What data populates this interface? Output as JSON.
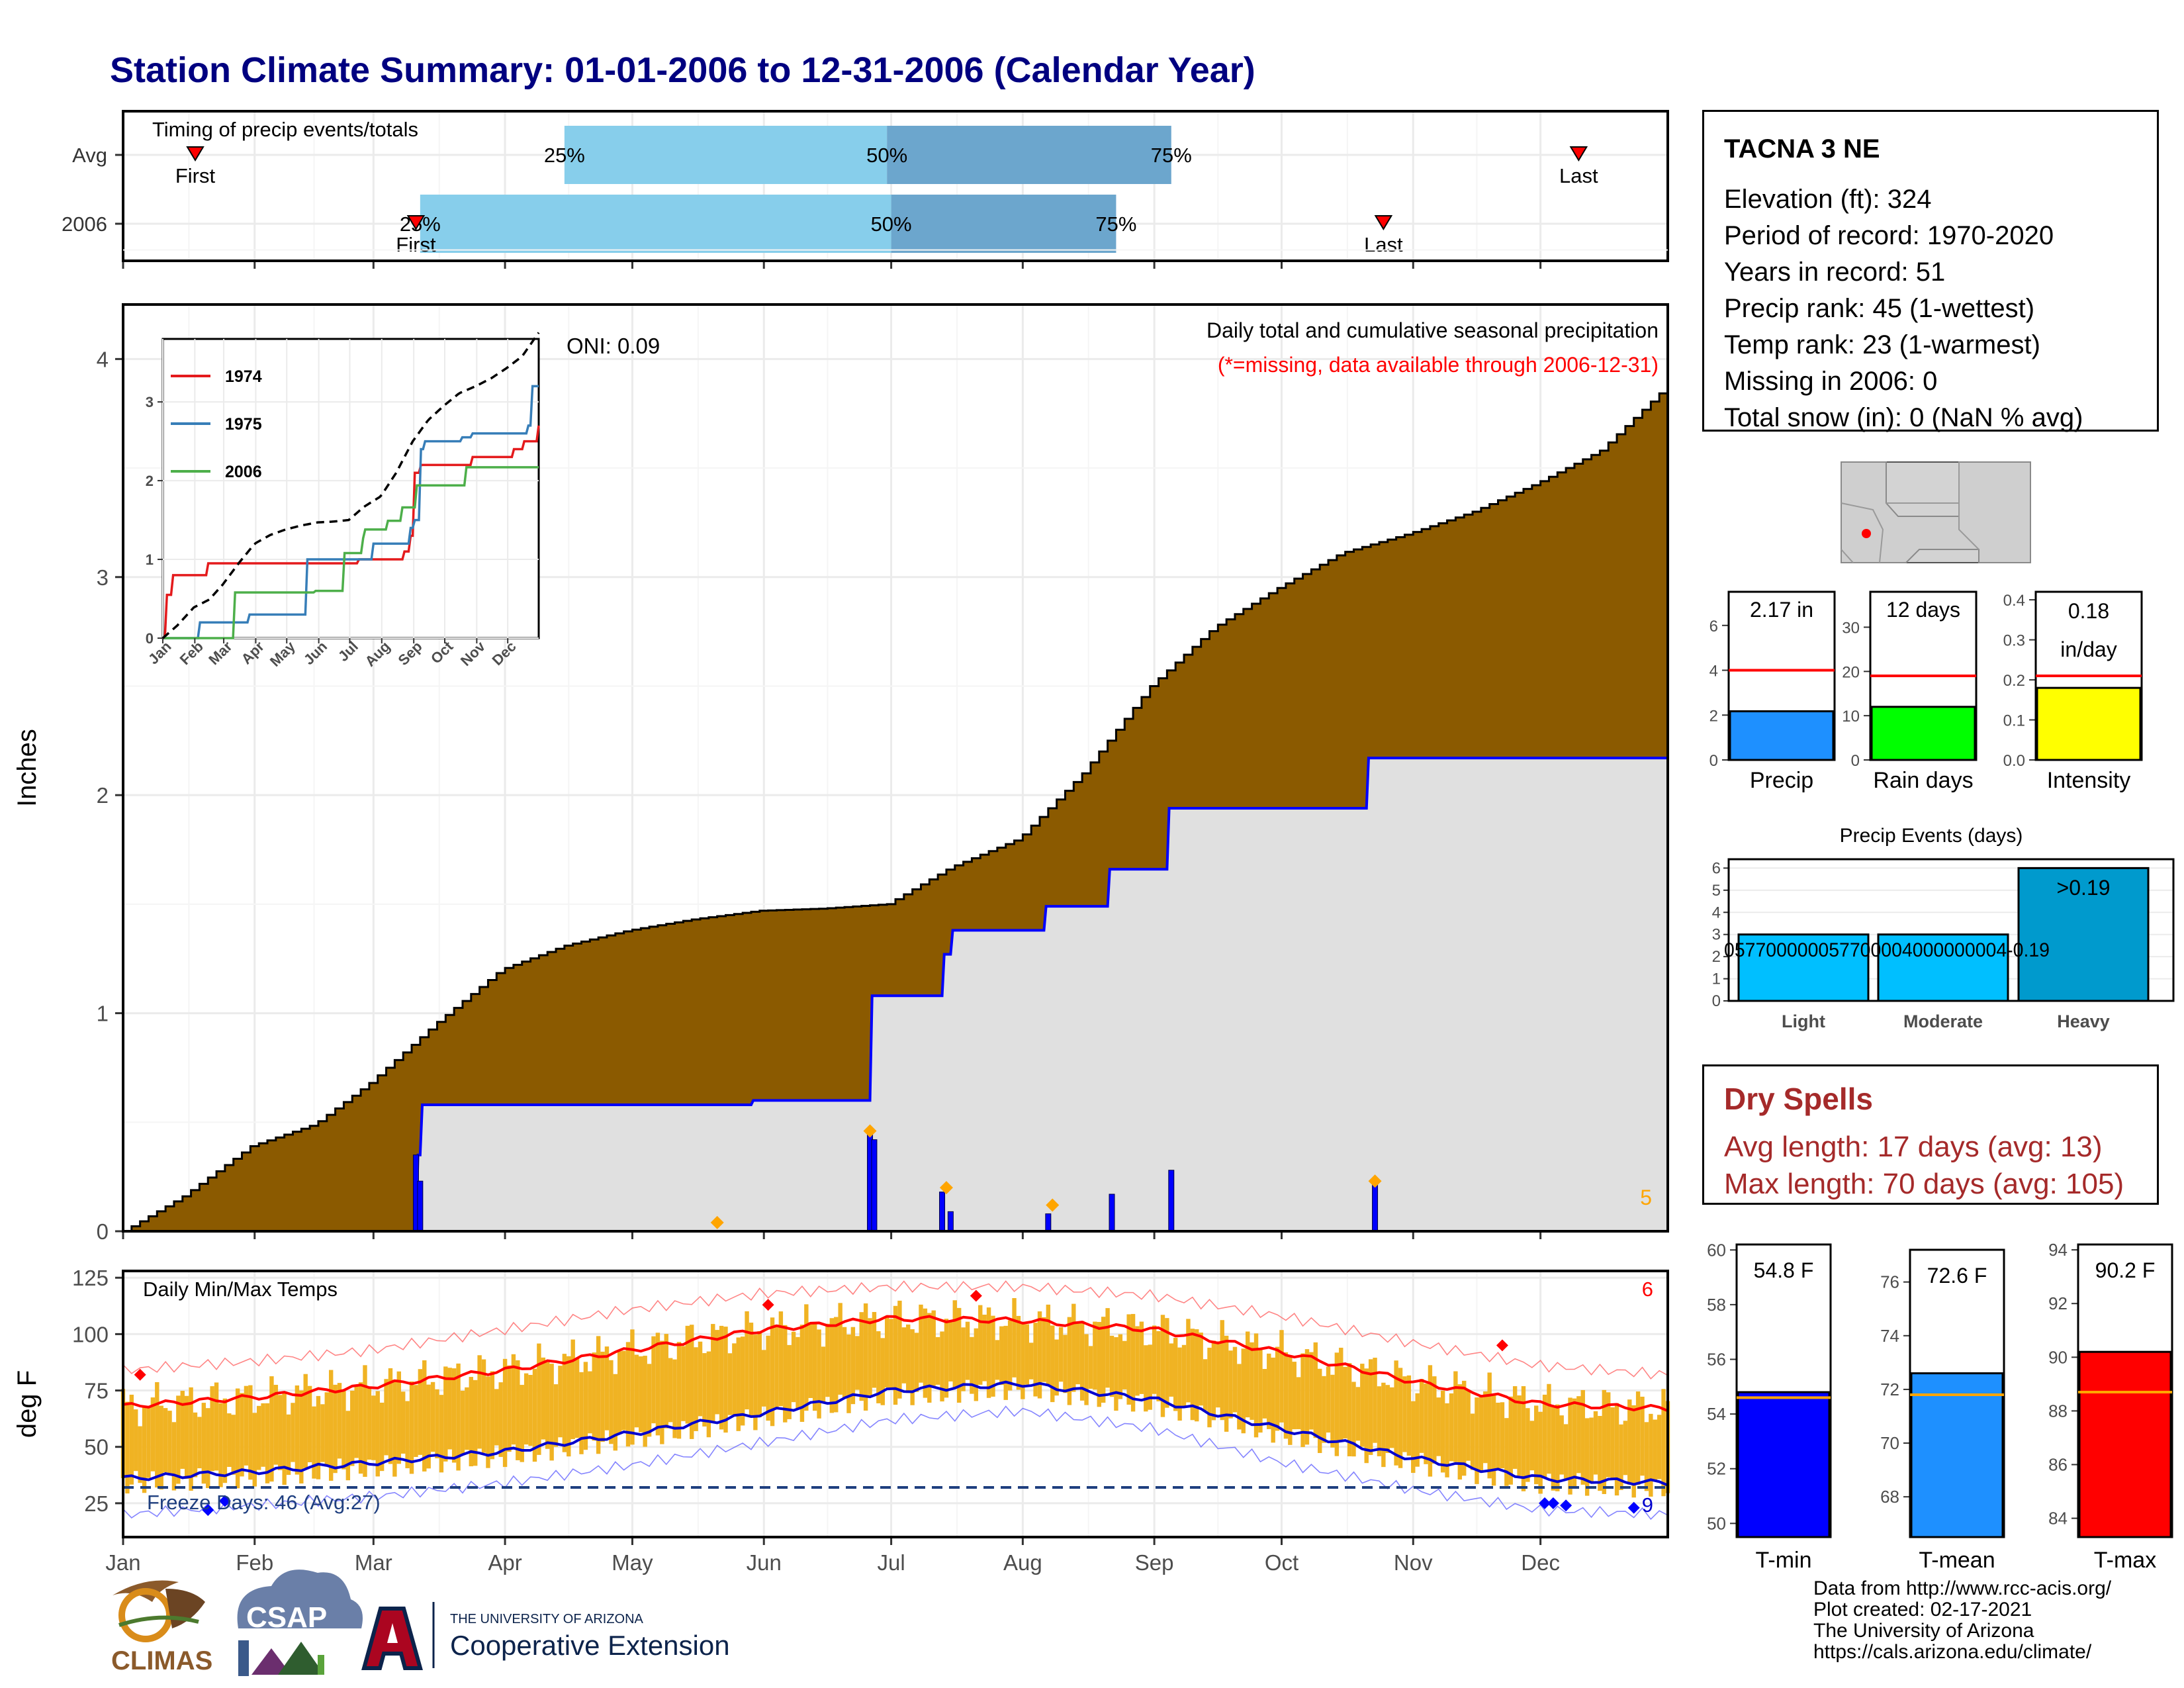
{
  "title": "Station Climate Summary: 01-01-2006 to 12-31-2006 (Calendar Year)",
  "colors": {
    "title": "#000080",
    "cum_fill": "#8B5A00",
    "year_fill": "#E0E0E0",
    "year_line": "#0000FF",
    "event_light": "#87CEEB",
    "event_dark": "#6CA6CD",
    "marker": "#FF0000",
    "temp_bar": "#F0B323",
    "tmax": "#FF0000",
    "tmin": "#0000CD",
    "orange": "#FFA500",
    "dry": "#A52A2A"
  },
  "info": {
    "station": "TACNA 3 NE",
    "lines": [
      "Elevation (ft): 324",
      "Period of record: 1970-2020",
      "Years in record: 51",
      "Precip rank: 45 (1-wettest)",
      "Temp rank: 23 (1-warmest)",
      "Missing in 2006: 0",
      "Total snow (in): 0 (NaN % avg)"
    ]
  },
  "dry_spells": {
    "title": "Dry Spells",
    "avg_line": "Avg length: 17 days (avg: 13)",
    "max_line": "Max length: 70 days (avg: 105)"
  },
  "footer": {
    "lines": [
      "Data from http://www.rcc-acis.org/",
      "Plot created: 02-17-2021",
      "The University of Arizona",
      "https://cals.arizona.edu/climate/"
    ]
  },
  "logos": {
    "climas": "CLIMAS",
    "csap": "CSAP",
    "ua_small": "THE UNIVERSITY OF ARIZONA",
    "ua_big": "Cooperative Extension"
  },
  "chart_data": [
    {
      "id": "timing",
      "type": "bar",
      "title": "Timing of precip events/totals",
      "categories": [
        "Avg",
        "2006"
      ],
      "xlim_doy": [
        1,
        365
      ],
      "rows": [
        {
          "name": "Avg",
          "first_doy": 18,
          "last_doy": 344,
          "p25_doy": 105,
          "p50_doy": 181,
          "p75_doy": 248,
          "labels": {
            "first": "First",
            "last": "Last",
            "p25": "25%",
            "p50": "50%",
            "p75": "75%"
          }
        },
        {
          "name": "2006",
          "first_doy": 70,
          "last_doy": 298,
          "p25_doy": 71,
          "p50_doy": 182,
          "p75_doy": 235,
          "labels": {
            "first": "First",
            "last": "Last",
            "p25": "25%",
            "p50": "50%",
            "p75": "75%"
          }
        }
      ]
    },
    {
      "id": "cumulative_precip",
      "type": "area",
      "title": "Daily total and cumulative seasonal precipitation",
      "subtitle": "(*=missing, data available through 2006-12-31)",
      "ylabel": "Inches",
      "ylim": [
        0,
        4.25
      ],
      "yticks": [
        0,
        1,
        2,
        3,
        4
      ],
      "x_month_labels": [
        "Jan",
        "Feb",
        "Mar",
        "Apr",
        "May",
        "Jun",
        "Jul",
        "Aug",
        "Sep",
        "Oct",
        "Nov",
        "Dec"
      ],
      "annotation": "ONI: 0.09",
      "corner_count": "5",
      "avg_cumulative_x": [
        1,
        15,
        31,
        46,
        59,
        75,
        90,
        105,
        120,
        135,
        151,
        166,
        181,
        196,
        212,
        227,
        243,
        258,
        273,
        288,
        304,
        319,
        334,
        349,
        365
      ],
      "avg_cumulative": [
        0,
        0.16,
        0.39,
        0.49,
        0.68,
        0.96,
        1.2,
        1.31,
        1.38,
        1.43,
        1.47,
        1.48,
        1.5,
        1.67,
        1.8,
        2.1,
        2.5,
        2.77,
        2.95,
        3.11,
        3.2,
        3.3,
        3.43,
        3.58,
        3.88
      ],
      "series_2006_x": [
        1,
        70,
        70.5,
        71,
        71.5,
        149,
        149.5,
        177,
        177.5,
        194,
        194.5,
        196,
        196.5,
        218,
        218.5,
        233,
        233.5,
        247,
        247.5,
        294,
        294.5,
        365
      ],
      "series_2006": [
        0,
        0,
        0.35,
        0.35,
        0.58,
        0.58,
        0.6,
        0.6,
        1.08,
        1.08,
        1.27,
        1.27,
        1.38,
        1.38,
        1.49,
        1.49,
        1.66,
        1.66,
        1.94,
        1.94,
        2.17,
        2.17
      ],
      "daily_bars": [
        {
          "doy": 70,
          "value": 0.35
        },
        {
          "doy": 71,
          "value": 0.23
        },
        {
          "doy": 177,
          "value": 0.45
        },
        {
          "doy": 178,
          "value": 0.42
        },
        {
          "doy": 194,
          "value": 0.18
        },
        {
          "doy": 196,
          "value": 0.09
        },
        {
          "doy": 219,
          "value": 0.08
        },
        {
          "doy": 234,
          "value": 0.17
        },
        {
          "doy": 248,
          "value": 0.28
        },
        {
          "doy": 296,
          "value": 0.22
        }
      ],
      "orange_markers": [
        {
          "doy": 141,
          "value": 0.04
        },
        {
          "doy": 177,
          "value": 0.46
        },
        {
          "doy": 195,
          "value": 0.2
        },
        {
          "doy": 220,
          "value": 0.12
        },
        {
          "doy": 296,
          "value": 0.23
        }
      ]
    },
    {
      "id": "inset_cumulative",
      "type": "line",
      "x_labels": [
        "Jan",
        "Feb",
        "Mar",
        "Apr",
        "May",
        "Jun",
        "Jul",
        "Aug",
        "Sep",
        "Oct",
        "Nov",
        "Dec"
      ],
      "yticks": [
        0,
        1,
        2,
        3
      ],
      "ylim": [
        0,
        3.8
      ],
      "series": [
        {
          "name": "1974",
          "color": "#E41A1C",
          "x": [
            1,
            5,
            10,
            40,
            45,
            185,
            190,
            235,
            240,
            245,
            250,
            300,
            340,
            350,
            365
          ],
          "y": [
            0,
            0.55,
            0.8,
            0.8,
            0.95,
            0.95,
            1.0,
            1.1,
            1.3,
            2.1,
            2.2,
            2.3,
            2.4,
            2.5,
            2.7
          ]
        },
        {
          "name": "1975",
          "color": "#377EB8",
          "x": [
            1,
            35,
            36,
            80,
            85,
            140,
            160,
            200,
            205,
            240,
            245,
            250,
            255,
            290,
            300,
            340,
            355,
            358,
            365
          ],
          "y": [
            0,
            0,
            0.2,
            0.2,
            0.3,
            1.0,
            1.0,
            1.0,
            1.2,
            1.4,
            1.5,
            2.4,
            2.5,
            2.55,
            2.6,
            2.6,
            2.7,
            3.2,
            3.2
          ]
        },
        {
          "name": "2006",
          "color": "#4DAF4A",
          "x": [
            1,
            70,
            71,
            149,
            177,
            178,
            194,
            196,
            218,
            233,
            247,
            294,
            365
          ],
          "y": [
            0,
            0,
            0.58,
            0.6,
            1.08,
            1.08,
            1.27,
            1.38,
            1.49,
            1.66,
            1.94,
            2.17,
            2.17
          ]
        },
        {
          "name": "avg",
          "color": "#000000",
          "x": [
            1,
            15,
            31,
            46,
            59,
            75,
            90,
            105,
            120,
            135,
            151,
            166,
            181,
            196,
            212,
            227,
            243,
            258,
            273,
            288,
            304,
            319,
            334,
            349,
            365
          ],
          "y": [
            0,
            0.16,
            0.39,
            0.49,
            0.68,
            0.96,
            1.2,
            1.31,
            1.38,
            1.43,
            1.47,
            1.48,
            1.5,
            1.67,
            1.8,
            2.1,
            2.5,
            2.77,
            2.95,
            3.11,
            3.2,
            3.3,
            3.43,
            3.58,
            3.88
          ]
        }
      ]
    },
    {
      "id": "small_bars",
      "type": "bar",
      "panels": [
        {
          "name": "Precip",
          "label": "2.17 in",
          "value": 2.17,
          "avg": 4.0,
          "ylim": [
            0,
            7.5
          ],
          "yticks": [
            0,
            2,
            4,
            6
          ],
          "color": "#1E90FF"
        },
        {
          "name": "Rain days",
          "label": "12 days",
          "value": 12,
          "avg": 19,
          "ylim": [
            0,
            38
          ],
          "yticks": [
            0,
            10,
            20,
            30
          ],
          "color": "#00FF00"
        },
        {
          "name": "Intensity",
          "label": "0.18 in/day",
          "label_lines": [
            "0.18",
            "in/day"
          ],
          "value": 0.18,
          "avg": 0.21,
          "ylim": [
            0,
            0.42
          ],
          "yticks": [
            0.0,
            0.1,
            0.2,
            0.3,
            0.4
          ],
          "color": "#FFFF00"
        }
      ]
    },
    {
      "id": "precip_events",
      "type": "bar",
      "title": "Precip Events (days)",
      "categories": [
        "Light",
        "Moderate",
        "Heavy"
      ],
      "values": [
        3,
        3,
        6
      ],
      "bar_labels": [
        "057700000057700004000000004-0.19",
        "",
        ">0.19"
      ],
      "yticks": [
        0,
        1,
        2,
        3,
        4,
        5,
        6
      ],
      "ylim": [
        0,
        6.4
      ],
      "color": "#00BFFF",
      "heavy_color": "#009ACD"
    },
    {
      "id": "daily_temps",
      "type": "bar",
      "title": "Daily Min/Max Temps",
      "ylabel": "deg F",
      "ylim": [
        10,
        128
      ],
      "yticks": [
        25,
        50,
        75,
        100,
        125
      ],
      "freeze_line": 32,
      "freeze_label": "Freeze Days: 46 (Avg:27)",
      "corner_top": "6",
      "corner_bottom": "9",
      "x_month_labels": [
        "Jan",
        "Feb",
        "Mar",
        "Apr",
        "May",
        "Jun",
        "Jul",
        "Aug",
        "Sep",
        "Oct",
        "Nov",
        "Dec"
      ],
      "avg_tmax_x": [
        1,
        32,
        60,
        91,
        121,
        152,
        182,
        213,
        244,
        274,
        305,
        335,
        365
      ],
      "avg_tmax": [
        68,
        72,
        77,
        84,
        93,
        102,
        107,
        106,
        102,
        92,
        79,
        69,
        67
      ],
      "avg_tmin_x": [
        1,
        32,
        60,
        91,
        121,
        152,
        182,
        213,
        244,
        274,
        305,
        335,
        365
      ],
      "avg_tmin": [
        36,
        39,
        43,
        48,
        56,
        65,
        75,
        78,
        71,
        58,
        45,
        36,
        34
      ],
      "record_tmax": [
        84,
        88,
        93,
        102,
        111,
        118,
        121,
        121,
        117,
        108,
        96,
        86,
        82
      ],
      "record_tmin": [
        20,
        24,
        28,
        34,
        42,
        52,
        62,
        66,
        58,
        43,
        31,
        22,
        20
      ],
      "red_markers": [
        {
          "doy": 5,
          "value": 82
        },
        {
          "doy": 153,
          "value": 113
        },
        {
          "doy": 202,
          "value": 117
        },
        {
          "doy": 326,
          "value": 95
        }
      ],
      "blue_markers": [
        {
          "doy": 21,
          "value": 22
        },
        {
          "doy": 25,
          "value": 26
        },
        {
          "doy": 336,
          "value": 25
        },
        {
          "doy": 338,
          "value": 25
        },
        {
          "doy": 341,
          "value": 24
        },
        {
          "doy": 357,
          "value": 23
        }
      ]
    },
    {
      "id": "temp_summary",
      "type": "bar",
      "panels": [
        {
          "name": "T-min",
          "label": "54.8 F",
          "value": 54.8,
          "avg": 54.6,
          "ylim": [
            49.5,
            60.2
          ],
          "yticks": [
            50,
            52,
            54,
            56,
            58,
            60
          ],
          "color": "#0000FF"
        },
        {
          "name": "T-mean",
          "label": "72.6 F",
          "value": 72.6,
          "avg": 71.8,
          "ylim": [
            66.5,
            77.2
          ],
          "yticks": [
            68,
            70,
            72,
            74,
            76
          ],
          "color": "#1E90FF"
        },
        {
          "name": "T-max",
          "label": "90.2 F",
          "value": 90.2,
          "avg": 88.7,
          "ylim": [
            83.3,
            94.2
          ],
          "yticks": [
            84,
            86,
            88,
            90,
            92,
            94
          ],
          "color": "#FF0000"
        }
      ]
    }
  ]
}
